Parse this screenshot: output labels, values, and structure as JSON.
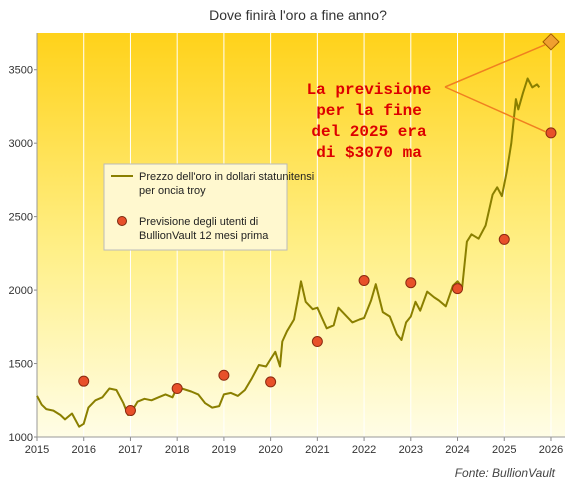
{
  "chart_data": {
    "type": "line",
    "title": "Dove finirà l'oro a fine anno?",
    "xlabel": "",
    "ylabel": "",
    "xlim": [
      2015,
      2026.3
    ],
    "ylim": [
      1000,
      3750
    ],
    "x_ticks": [
      "2015",
      "2016",
      "2017",
      "2018",
      "2019",
      "2020",
      "2021",
      "2022",
      "2023",
      "2024",
      "2025",
      "2026"
    ],
    "y_ticks": [
      "1000",
      "1500",
      "2000",
      "2500",
      "3000",
      "3500"
    ],
    "grid": "vertical",
    "legend_position": "upper-left",
    "series": [
      {
        "name": "Prezzo dell'oro in dollari statunitensi per oncia troy",
        "kind": "line",
        "color": "#8a7f00",
        "x": [
          2015.0,
          2015.1,
          2015.2,
          2015.35,
          2015.5,
          2015.6,
          2015.75,
          2015.9,
          2016.0,
          2016.1,
          2016.25,
          2016.4,
          2016.55,
          2016.7,
          2016.85,
          2016.95,
          2017.0,
          2017.15,
          2017.3,
          2017.45,
          2017.6,
          2017.75,
          2017.9,
          2018.0,
          2018.1,
          2018.3,
          2018.45,
          2018.6,
          2018.75,
          2018.9,
          2019.0,
          2019.15,
          2019.3,
          2019.45,
          2019.6,
          2019.75,
          2019.9,
          2020.0,
          2020.1,
          2020.2,
          2020.25,
          2020.35,
          2020.5,
          2020.6,
          2020.65,
          2020.75,
          2020.9,
          2021.0,
          2021.1,
          2021.2,
          2021.35,
          2021.45,
          2021.6,
          2021.75,
          2021.9,
          2022.0,
          2022.15,
          2022.25,
          2022.4,
          2022.55,
          2022.7,
          2022.8,
          2022.9,
          2023.0,
          2023.1,
          2023.2,
          2023.35,
          2023.5,
          2023.6,
          2023.75,
          2023.9,
          2024.0,
          2024.1,
          2024.2,
          2024.3,
          2024.45,
          2024.6,
          2024.75,
          2024.85,
          2024.95,
          2025.05,
          2025.15,
          2025.25,
          2025.3,
          2025.4,
          2025.5,
          2025.6,
          2025.7,
          2025.75
        ],
        "y": [
          1280,
          1220,
          1190,
          1180,
          1150,
          1120,
          1160,
          1070,
          1090,
          1200,
          1250,
          1270,
          1330,
          1320,
          1230,
          1150,
          1160,
          1240,
          1260,
          1250,
          1270,
          1290,
          1270,
          1340,
          1330,
          1310,
          1290,
          1230,
          1200,
          1210,
          1290,
          1300,
          1280,
          1320,
          1400,
          1490,
          1480,
          1530,
          1580,
          1480,
          1650,
          1720,
          1800,
          1970,
          2060,
          1920,
          1870,
          1880,
          1810,
          1740,
          1760,
          1880,
          1830,
          1780,
          1800,
          1810,
          1930,
          2040,
          1850,
          1820,
          1700,
          1660,
          1780,
          1820,
          1920,
          1860,
          1990,
          1950,
          1930,
          1890,
          2030,
          2060,
          2020,
          2330,
          2380,
          2350,
          2440,
          2650,
          2700,
          2640,
          2800,
          3000,
          3300,
          3230,
          3340,
          3440,
          3380,
          3400,
          3380
        ]
      },
      {
        "name": "Previsione degli utenti di BullionVault 12 mesi prima",
        "kind": "scatter",
        "color": "#e8502a",
        "x": [
          2016,
          2017,
          2018,
          2019,
          2020,
          2021,
          2022,
          2023,
          2024,
          2025,
          2026
        ],
        "y": [
          1380,
          1180,
          1330,
          1420,
          1375,
          1650,
          2065,
          2050,
          2010,
          2345,
          3070
        ]
      }
    ],
    "annotations": {
      "text_lines": [
        "La previsione",
        "per la fine",
        "del 2025 era",
        "di $3070 ma"
      ],
      "diamond": {
        "x": 2026,
        "y": 3690,
        "color": "#f0a030"
      }
    },
    "source": "Fonte: BullionVault"
  }
}
